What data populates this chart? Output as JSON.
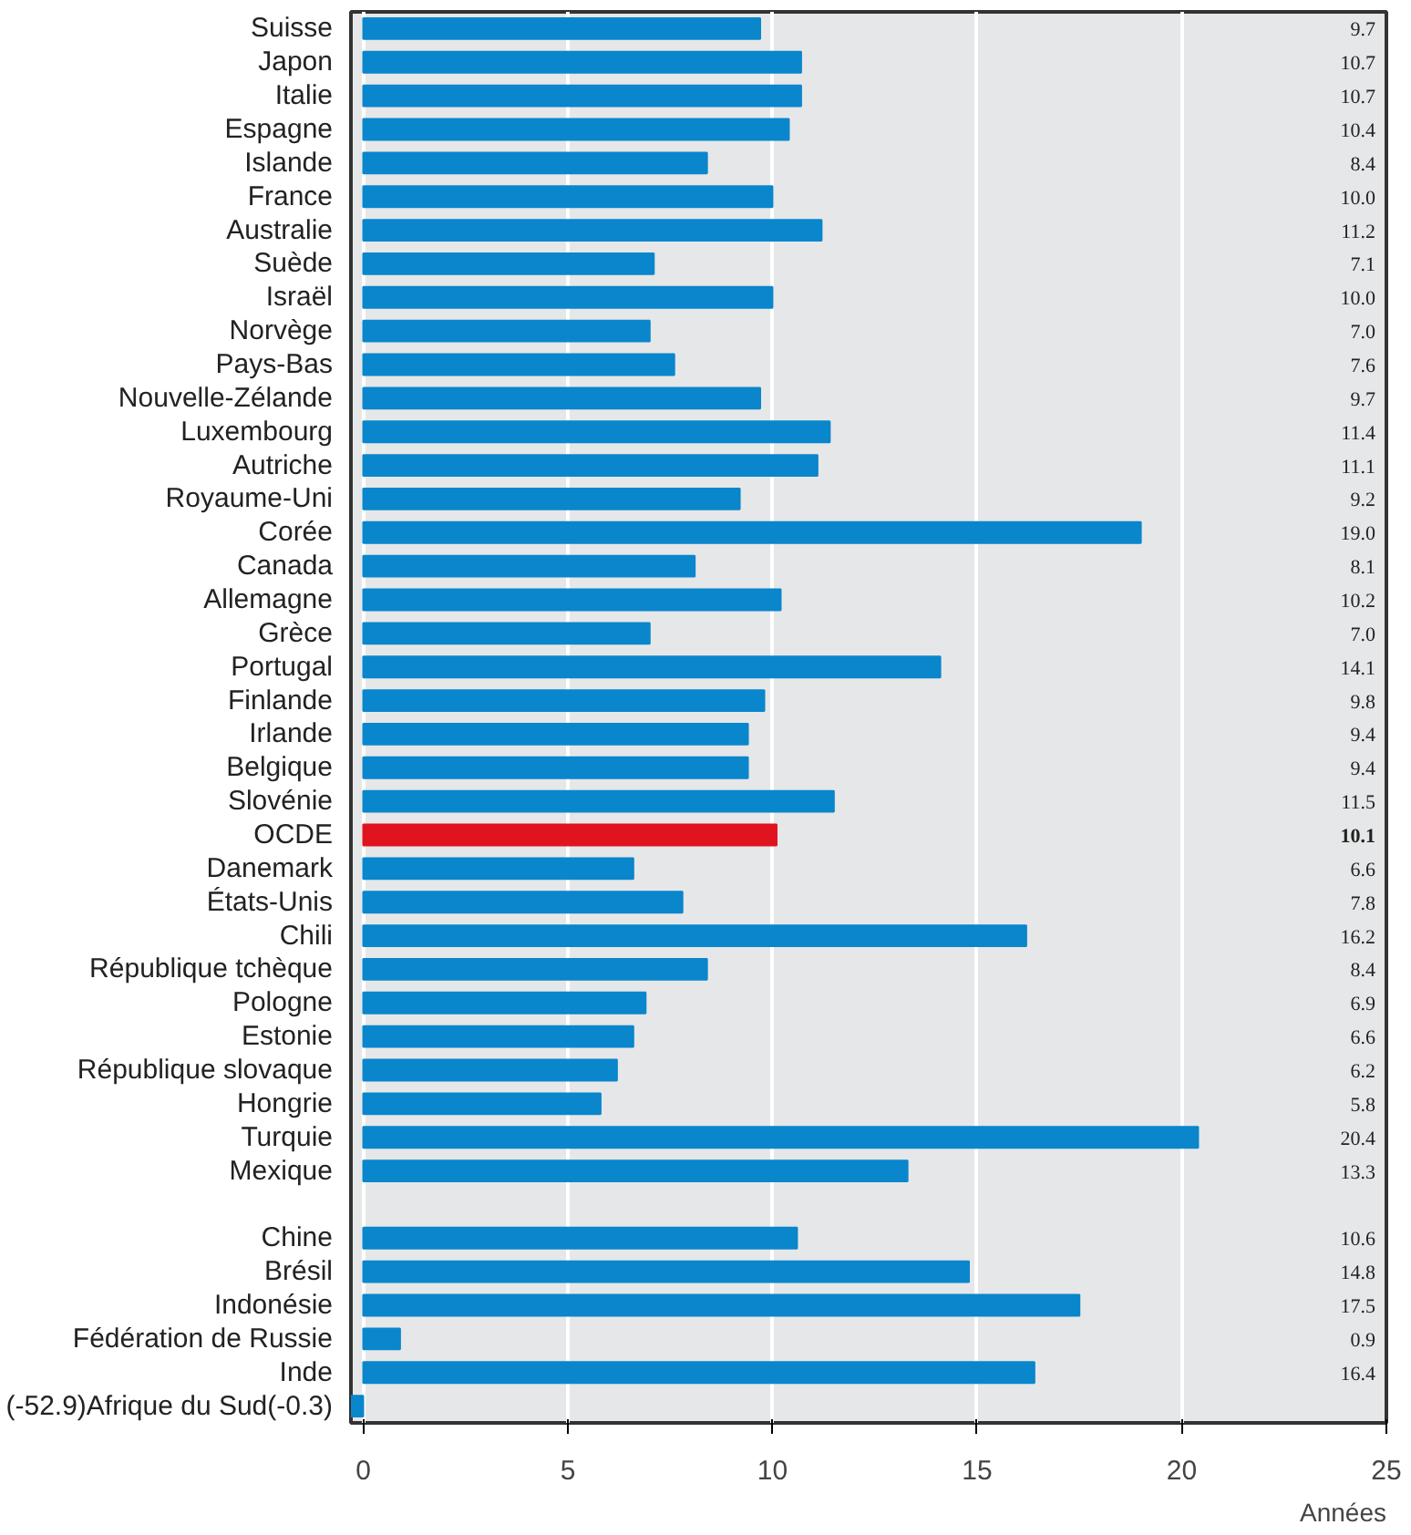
{
  "chart_data": {
    "type": "bar",
    "orientation": "horizontal",
    "categories": [
      "Suisse",
      "Japon",
      "Italie",
      "Espagne",
      "Islande",
      "France",
      "Australie",
      "Suède",
      "Israël",
      "Norvège",
      "Pays-Bas",
      "Nouvelle-Zélande",
      "Luxembourg",
      "Autriche",
      "Royaume-Uni",
      "Corée",
      "Canada",
      "Allemagne",
      "Grèce",
      "Portugal",
      "Finlande",
      "Irlande",
      "Belgique",
      "Slovénie",
      "OCDE",
      "Danemark",
      "États-Unis",
      "Chili",
      "République tchèque",
      "Pologne",
      "Estonie",
      "République slovaque",
      "Hongrie",
      "Turquie",
      "Mexique",
      null,
      "Chine",
      "Brésil",
      "Indonésie",
      "Fédération de Russie",
      "Inde",
      "(-52.9)Afrique du Sud(-0.3)"
    ],
    "values": [
      9.7,
      10.7,
      10.7,
      10.4,
      8.4,
      10.0,
      11.2,
      7.1,
      10.0,
      7.0,
      7.6,
      9.7,
      11.4,
      11.1,
      9.2,
      19.0,
      8.1,
      10.2,
      7.0,
      14.1,
      9.8,
      9.4,
      9.4,
      11.5,
      10.1,
      6.6,
      7.8,
      16.2,
      8.4,
      6.9,
      6.6,
      6.2,
      5.8,
      20.4,
      13.3,
      null,
      10.6,
      14.8,
      17.5,
      0.9,
      16.4,
      -0.3
    ],
    "value_labels": [
      "9.7",
      "10.7",
      "10.7",
      "10.4",
      "8.4",
      "10.0",
      "11.2",
      "7.1",
      "10.0",
      "7.0",
      "7.6",
      "9.7",
      "11.4",
      "11.1",
      "9.2",
      "19.0",
      "8.1",
      "10.2",
      "7.0",
      "14.1",
      "9.8",
      "9.4",
      "9.4",
      "11.5",
      "10.1",
      "6.6",
      "7.8",
      "16.2",
      "8.4",
      "6.9",
      "6.6",
      "6.2",
      "5.8",
      "20.4",
      "13.3",
      null,
      "10.6",
      "14.8",
      "17.5",
      "0.9",
      "16.4",
      null
    ],
    "colors": [
      "#0a86cc",
      "#0a86cc",
      "#0a86cc",
      "#0a86cc",
      "#0a86cc",
      "#0a86cc",
      "#0a86cc",
      "#0a86cc",
      "#0a86cc",
      "#0a86cc",
      "#0a86cc",
      "#0a86cc",
      "#0a86cc",
      "#0a86cc",
      "#0a86cc",
      "#0a86cc",
      "#0a86cc",
      "#0a86cc",
      "#0a86cc",
      "#0a86cc",
      "#0a86cc",
      "#0a86cc",
      "#0a86cc",
      "#0a86cc",
      "#e0141e",
      "#0a86cc",
      "#0a86cc",
      "#0a86cc",
      "#0a86cc",
      "#0a86cc",
      "#0a86cc",
      "#0a86cc",
      "#0a86cc",
      "#0a86cc",
      "#0a86cc",
      "#0a86cc",
      "#0a86cc",
      "#0a86cc",
      "#0a86cc",
      "#0a86cc",
      "#0a86cc",
      "#0a86cc"
    ],
    "xlim": [
      -0.3,
      25
    ],
    "xticks": [
      0,
      5,
      10,
      15,
      20,
      25
    ],
    "xlabel": "Années",
    "grid": "x"
  }
}
